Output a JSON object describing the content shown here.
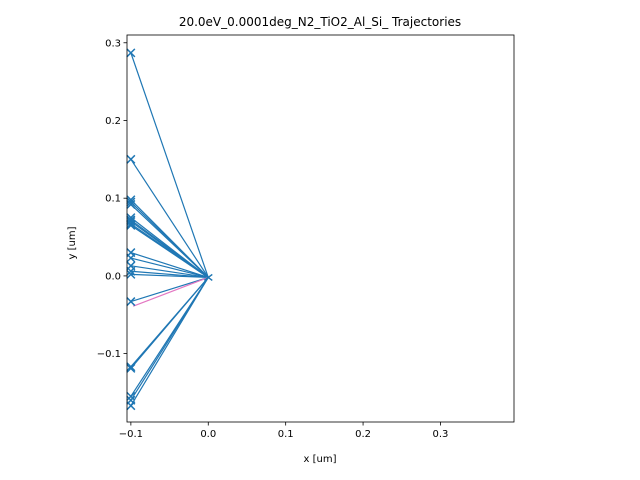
{
  "chart_data": {
    "type": "line",
    "title": "20.0eV_0.0001deg_N2_TiO2_Al_Si_ Trajectories",
    "xlabel": "x [um]",
    "ylabel": "y [um]",
    "xlim": [
      -0.105,
      0.395
    ],
    "ylim": [
      -0.188,
      0.31
    ],
    "xticks": [
      -0.1,
      0.0,
      0.1,
      0.2,
      0.3
    ],
    "xtick_labels": [
      "−0.1",
      "0.0",
      "0.1",
      "0.2",
      "0.3"
    ],
    "yticks": [
      -0.1,
      0.0,
      0.1,
      0.2,
      0.3
    ],
    "ytick_labels": [
      "−0.1",
      "0.0",
      "0.1",
      "0.2",
      "0.3"
    ],
    "grid": false,
    "origin": [
      0.0,
      -0.002
    ],
    "trajectory_color": "#1f77b4",
    "endpoint_marker": "x",
    "endpoints_y": [
      0.287,
      0.15,
      0.098,
      0.095,
      0.092,
      0.075,
      0.072,
      0.07,
      0.067,
      0.065,
      0.03,
      0.023,
      0.013,
      0.006,
      0.002,
      -0.033,
      -0.117,
      -0.119,
      -0.155,
      -0.16,
      -0.167
    ],
    "endpoint_x": -0.1,
    "secondary_trace": {
      "color": "#e377c2",
      "points": [
        [
          0.0,
          -0.002
        ],
        [
          -0.097,
          -0.039
        ]
      ]
    }
  }
}
